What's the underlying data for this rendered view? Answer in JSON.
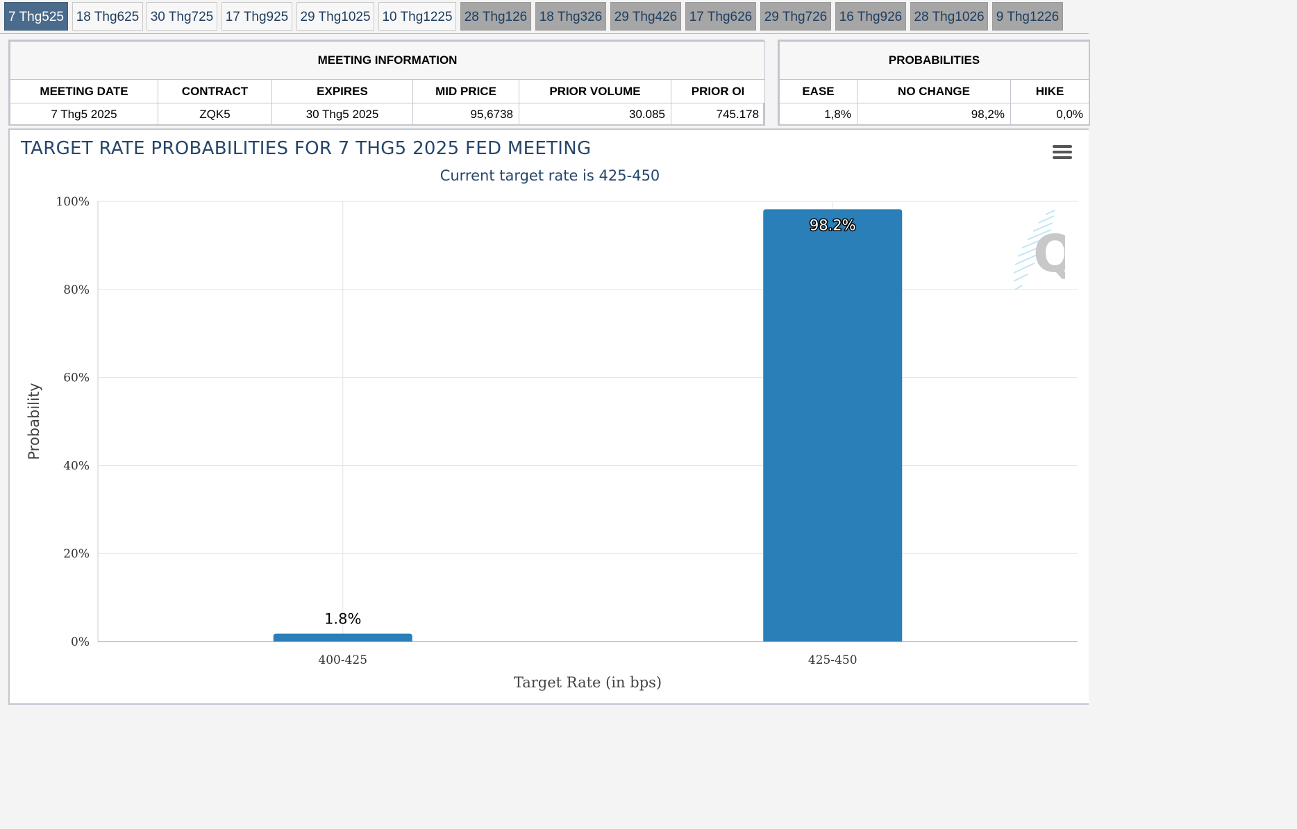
{
  "tabs": [
    "7 Thg525",
    "18 Thg625",
    "30 Thg725",
    "17 Thg925",
    "29 Thg1025",
    "10 Thg1225",
    "28 Thg126",
    "18 Thg326",
    "29 Thg426",
    "17 Thg626",
    "29 Thg726",
    "16 Thg926",
    "28 Thg1026",
    "9 Thg1226"
  ],
  "active_tab": 0,
  "meeting_info": {
    "caption": "MEETING INFORMATION",
    "headers": [
      "MEETING DATE",
      "CONTRACT",
      "EXPIRES",
      "MID PRICE",
      "PRIOR VOLUME",
      "PRIOR OI"
    ],
    "row": [
      "7 Thg5 2025",
      "ZQK5",
      "30 Thg5 2025",
      "95,6738",
      "30.085",
      "745.178"
    ]
  },
  "probabilities": {
    "caption": "PROBABILITIES",
    "headers": [
      "EASE",
      "NO CHANGE",
      "HIKE"
    ],
    "row": [
      "1,8%",
      "98,2%",
      "0,0%"
    ]
  },
  "menu_icon": "hamburger-menu-icon",
  "watermark_icon": "q-logo-icon",
  "colors": {
    "bar": "#2a7fb8",
    "title": "#26466b",
    "active_tab": "#4a6b8c"
  },
  "chart_data": {
    "type": "bar",
    "title": "TARGET RATE PROBABILITIES FOR 7 THG5 2025 FED MEETING",
    "subtitle": "Current target rate is 425-450",
    "xlabel": "Target Rate (in bps)",
    "ylabel": "Probability",
    "categories": [
      "400-425",
      "425-450"
    ],
    "values": [
      1.8,
      98.2
    ],
    "data_labels": [
      "1.8%",
      "98.2%"
    ],
    "ylim": [
      0,
      100
    ],
    "yticks": [
      "0%",
      "20%",
      "40%",
      "60%",
      "80%",
      "100%"
    ],
    "grid": true
  }
}
